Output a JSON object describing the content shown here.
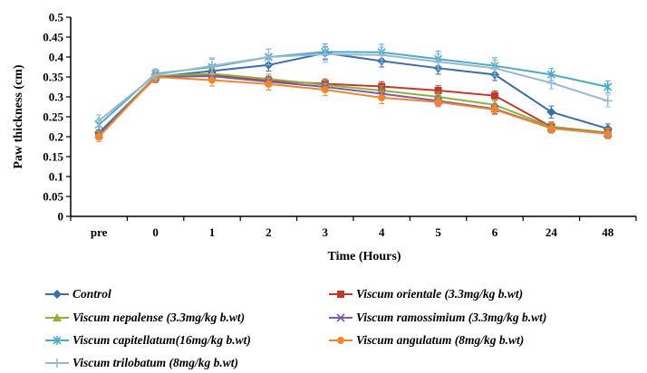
{
  "chart_data": {
    "type": "line",
    "title": "",
    "xlabel": "Time (Hours)",
    "ylabel": "Paw thickness (cm)",
    "ylim": [
      0,
      0.5
    ],
    "yticks": [
      "0",
      "0.05",
      "0.1",
      "0.15",
      "0.2",
      "0.25",
      "0.3",
      "0.35",
      "0.4",
      "0.45",
      "0.5"
    ],
    "categories": [
      "pre",
      "0",
      "1",
      "2",
      "3",
      "4",
      "5",
      "6",
      "24",
      "48"
    ],
    "grid": false,
    "legend_position": "bottom",
    "series": [
      {
        "name": "Control",
        "color": "#3a6ea5",
        "marker": "diamond",
        "values": [
          0.21,
          0.35,
          0.365,
          0.38,
          0.41,
          0.39,
          0.372,
          0.356,
          0.262,
          0.22
        ],
        "errors": [
          0.015,
          0.012,
          0.015,
          0.015,
          0.015,
          0.015,
          0.015,
          0.015,
          0.015,
          0.012
        ]
      },
      {
        "name": "Viscum orientale  (3.3mg/kg b.wt)",
        "color": "#c0392b",
        "marker": "square",
        "values": [
          0.205,
          0.348,
          0.355,
          0.34,
          0.333,
          0.326,
          0.316,
          0.303,
          0.225,
          0.21
        ],
        "errors": [
          0.012,
          0.012,
          0.012,
          0.012,
          0.012,
          0.012,
          0.012,
          0.012,
          0.012,
          0.012
        ]
      },
      {
        "name": "Viscum nepalense  (3.3mg/kg b.wt)",
        "color": "#8db33a",
        "marker": "triangle",
        "values": [
          0.205,
          0.352,
          0.358,
          0.345,
          0.33,
          0.316,
          0.3,
          0.28,
          0.225,
          0.21
        ],
        "errors": [
          0.012,
          0.012,
          0.012,
          0.012,
          0.012,
          0.012,
          0.012,
          0.012,
          0.012,
          0.012
        ]
      },
      {
        "name": "Viscum ramossimium  (3.3mg/kg b.wt)",
        "color": "#7d5ba6",
        "marker": "x",
        "values": [
          0.205,
          0.35,
          0.352,
          0.338,
          0.325,
          0.308,
          0.29,
          0.27,
          0.222,
          0.208
        ],
        "errors": [
          0.012,
          0.012,
          0.012,
          0.012,
          0.012,
          0.012,
          0.012,
          0.012,
          0.012,
          0.012
        ]
      },
      {
        "name": "Viscum capitellatum(16mg/kg b.wt)",
        "color": "#4bacc6",
        "marker": "star",
        "values": [
          0.23,
          0.358,
          0.375,
          0.4,
          0.413,
          0.412,
          0.395,
          0.378,
          0.356,
          0.325
        ],
        "errors": [
          0.015,
          0.012,
          0.02,
          0.02,
          0.02,
          0.02,
          0.02,
          0.02,
          0.015,
          0.015
        ]
      },
      {
        "name": "Viscum angulatum  (8mg/kg b.wt)",
        "color": "#f0872e",
        "marker": "circle",
        "values": [
          0.2,
          0.35,
          0.342,
          0.332,
          0.318,
          0.298,
          0.287,
          0.268,
          0.221,
          0.207
        ],
        "errors": [
          0.012,
          0.012,
          0.015,
          0.015,
          0.015,
          0.015,
          0.012,
          0.012,
          0.012,
          0.012
        ]
      },
      {
        "name": "Viscum trilobatum  (8mg/kg b.wt)",
        "color": "#9bb7d4",
        "marker": "plus",
        "values": [
          0.24,
          0.355,
          0.378,
          0.4,
          0.407,
          0.405,
          0.388,
          0.372,
          0.335,
          0.29
        ],
        "errors": [
          0.015,
          0.012,
          0.02,
          0.02,
          0.02,
          0.02,
          0.02,
          0.02,
          0.015,
          0.015
        ]
      }
    ]
  }
}
